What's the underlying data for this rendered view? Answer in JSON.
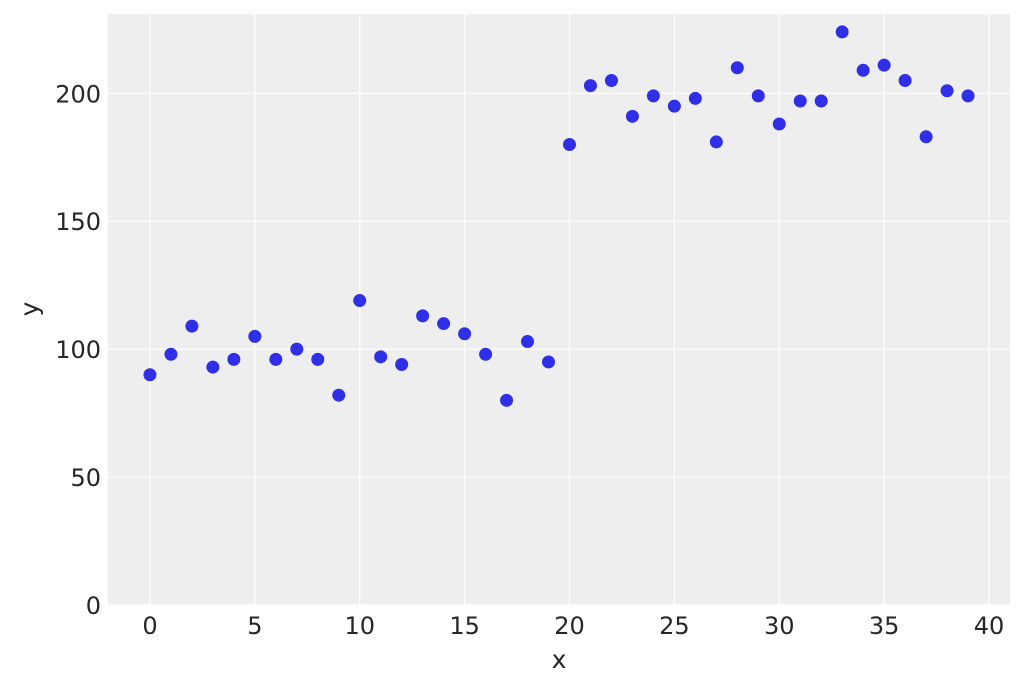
{
  "chart_data": {
    "type": "scatter",
    "title": "",
    "xlabel": "x",
    "ylabel": "y",
    "xlim": [
      -2,
      41
    ],
    "ylim": [
      0,
      231
    ],
    "xticks": [
      0,
      5,
      10,
      15,
      20,
      25,
      30,
      35,
      40
    ],
    "yticks": [
      0,
      50,
      100,
      150,
      200
    ],
    "grid": true,
    "color": "#1a1ae6",
    "background": "#eeeeee",
    "series": [
      {
        "x": [
          0,
          1,
          2,
          3,
          4,
          5,
          6,
          7,
          8,
          9,
          10,
          11,
          12,
          13,
          14,
          15,
          16,
          17,
          18,
          19,
          20,
          21,
          22,
          23,
          24,
          25,
          26,
          27,
          28,
          29,
          30,
          31,
          32,
          33,
          34,
          35,
          36,
          37,
          38,
          39
        ],
        "y": [
          90,
          98,
          109,
          93,
          96,
          105,
          96,
          100,
          96,
          82,
          119,
          97,
          94,
          113,
          110,
          106,
          98,
          80,
          103,
          95,
          180,
          203,
          205,
          191,
          199,
          195,
          198,
          181,
          210,
          199,
          188,
          197,
          197,
          224,
          209,
          211,
          205,
          183,
          201,
          199
        ]
      }
    ]
  }
}
